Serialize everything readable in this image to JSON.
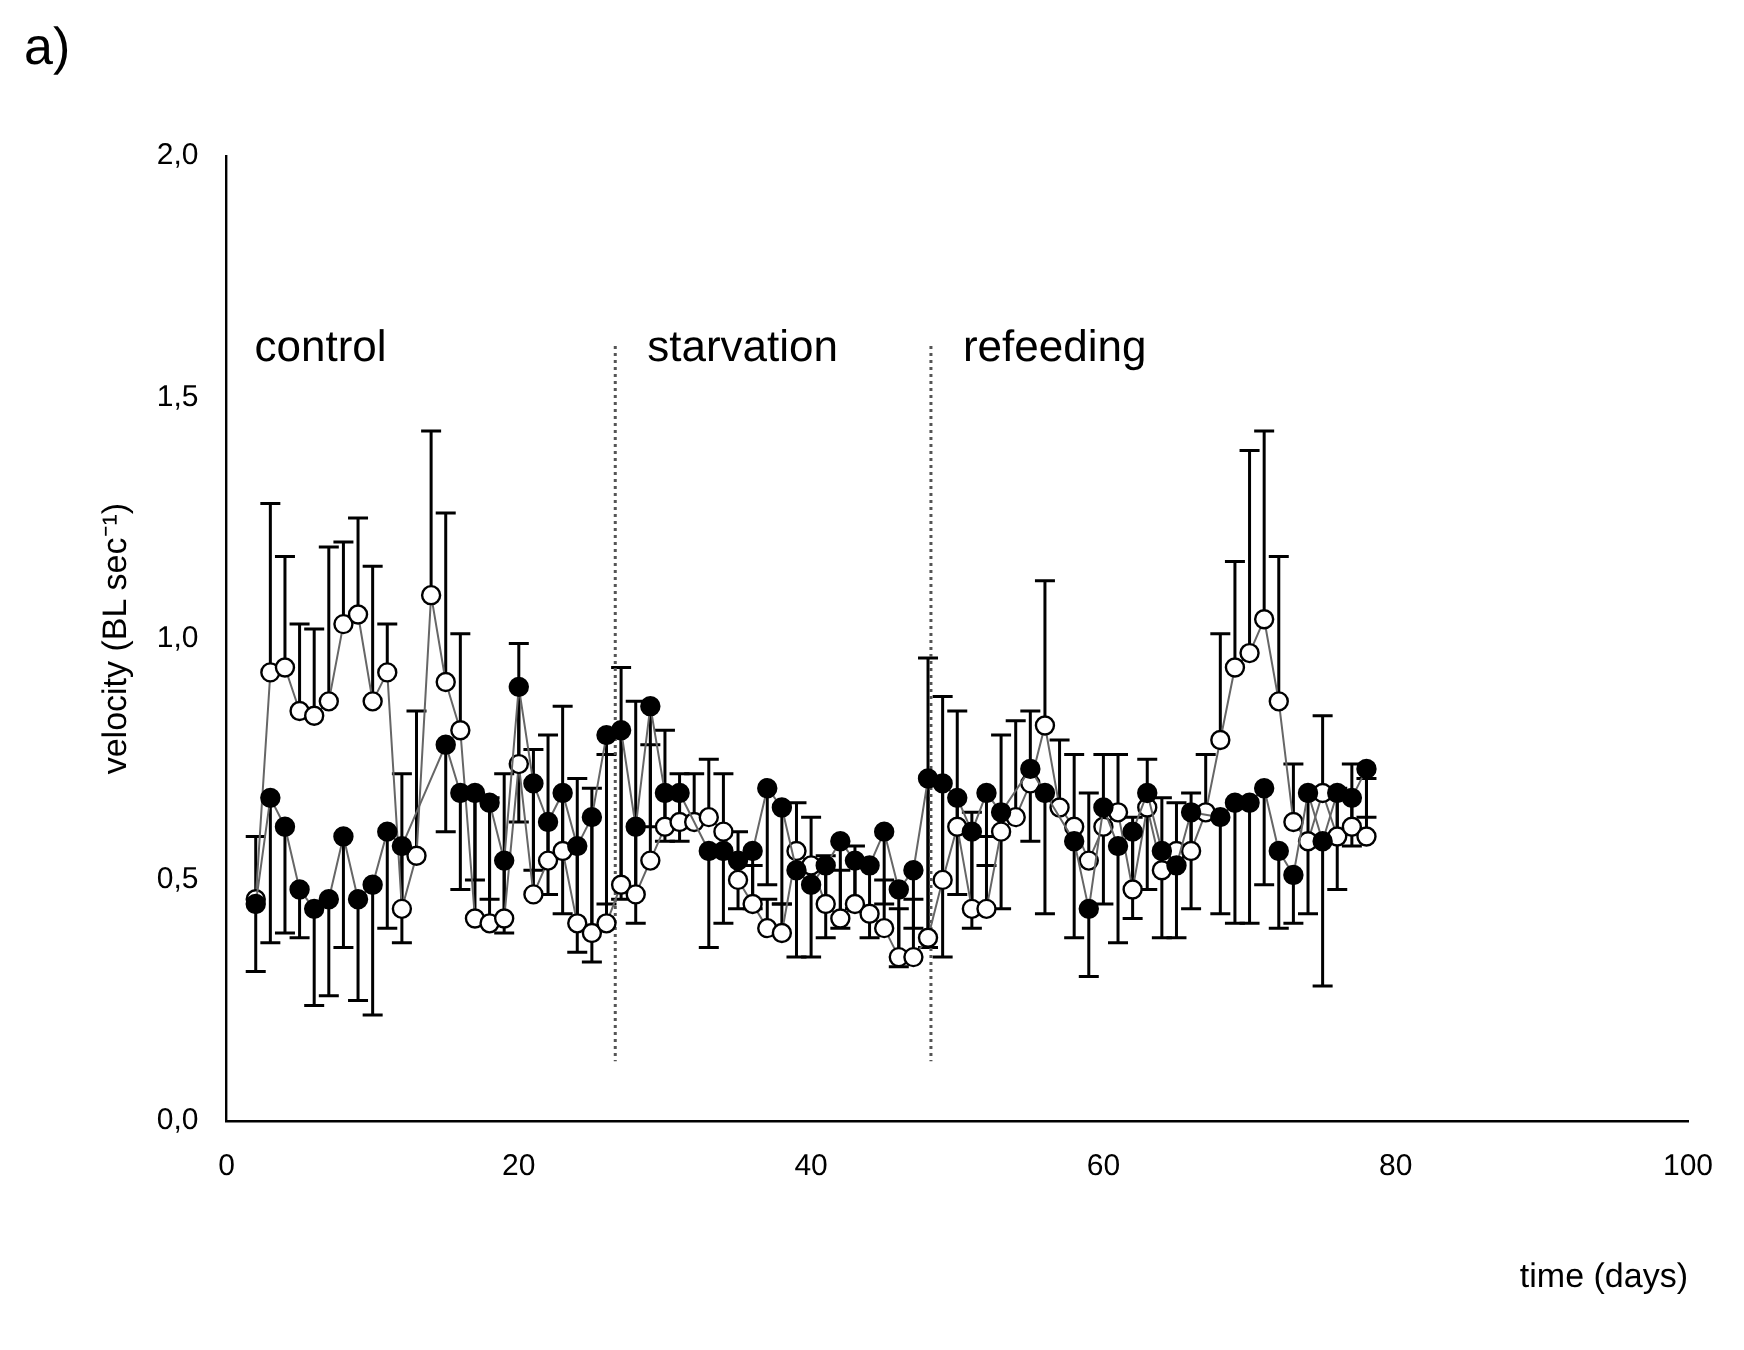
{
  "chart_data": {
    "type": "line",
    "title": "a)",
    "xlabel": "time (days)",
    "ylabel": "velocity (BL sec⁻¹)",
    "marker": "circle",
    "line_style": "solid",
    "grid": false,
    "xlim": [
      0,
      100
    ],
    "xticks": [
      0,
      20,
      40,
      60,
      80,
      100
    ],
    "ylim": [
      0,
      2
    ],
    "yticks": [
      {
        "value": 0,
        "label": "0,0"
      },
      {
        "value": 0.5,
        "label": "0,5"
      },
      {
        "value": 1,
        "label": "1,0"
      },
      {
        "value": 1.5,
        "label": "1,5"
      },
      {
        "value": 2,
        "label": "2,0"
      }
    ],
    "x": [
      2,
      3,
      4,
      5,
      6,
      7,
      8,
      9,
      10,
      11,
      12,
      13,
      14,
      15,
      16,
      17,
      18,
      19,
      20,
      21,
      22,
      23,
      24,
      25,
      26,
      27,
      28,
      29,
      30,
      31,
      32,
      33,
      34,
      35,
      36,
      37,
      38,
      39,
      40,
      41,
      42,
      43,
      44,
      45,
      46,
      47,
      48,
      49,
      50,
      51,
      52,
      53,
      54,
      55,
      56,
      57,
      58,
      59,
      60,
      61,
      62,
      63,
      64,
      65,
      66,
      67,
      68,
      69,
      70,
      71,
      72,
      73,
      74,
      75,
      76,
      77,
      78
    ],
    "series": [
      {
        "color": "#000000",
        "values": [
          0.45,
          0.67,
          0.61,
          0.48,
          0.44,
          0.46,
          0.59,
          0.46,
          0.49,
          0.6,
          0.57,
          null,
          null,
          0.78,
          0.68,
          0.68,
          0.66,
          0.54,
          0.9,
          0.7,
          0.62,
          0.68,
          0.57,
          0.63,
          0.8,
          0.81,
          0.61,
          0.86,
          0.68,
          0.68,
          null,
          0.56,
          0.56,
          0.54,
          0.56,
          0.69,
          0.65,
          0.52,
          0.49,
          0.53,
          0.58,
          0.54,
          0.53,
          0.6,
          0.48,
          0.52,
          0.71,
          0.7,
          0.67,
          0.6,
          0.68,
          0.64,
          null,
          0.73,
          0.68,
          null,
          0.58,
          0.44,
          0.65,
          0.57,
          0.6,
          0.68,
          0.56,
          0.53,
          0.64,
          null,
          0.63,
          0.66,
          0.66,
          0.69,
          0.56,
          0.51,
          0.68,
          0.58,
          0.68,
          0.67,
          0.73
        ],
        "errors": [
          [
            0.31,
            0.45
          ],
          [
            0.37,
            0.67
          ],
          [
            0.39,
            0.61
          ],
          [
            0.38,
            0.48
          ],
          [
            0.24,
            0.44
          ],
          [
            0.26,
            0.46
          ],
          [
            0.36,
            0.59
          ],
          [
            0.25,
            0.46
          ],
          [
            0.22,
            0.49
          ],
          [
            0.4,
            0.6
          ],
          [
            0.37,
            0.57
          ],
          null,
          null,
          [
            0.6,
            0.78
          ],
          [
            0.48,
            0.68
          ],
          [
            0.5,
            0.68
          ],
          [
            0.46,
            0.66
          ],
          [
            0.39,
            0.54
          ],
          [
            0.62,
            0.9
          ],
          [
            0.52,
            0.7
          ],
          [
            0.47,
            0.62
          ],
          [
            0.43,
            0.68
          ],
          [
            0.35,
            0.57
          ],
          [
            0.33,
            0.63
          ],
          [
            0.45,
            0.8
          ],
          [
            0.46,
            0.81
          ],
          [
            0.41,
            0.61
          ],
          [
            0.61,
            0.86
          ],
          [
            0.58,
            0.68
          ],
          [
            0.58,
            0.68
          ],
          null,
          [
            0.36,
            0.56
          ],
          [
            0.41,
            0.56
          ],
          [
            0.44,
            0.54
          ],
          [
            0.44,
            0.56
          ],
          [
            0.49,
            0.69
          ],
          [
            0.45,
            0.65
          ],
          [
            0.34,
            0.52
          ],
          [
            0.34,
            0.49
          ],
          [
            0.38,
            0.53
          ],
          [
            0.4,
            0.58
          ],
          [
            0.44,
            0.54
          ],
          [
            0.38,
            0.53
          ],
          [
            0.45,
            0.6
          ],
          [
            0.32,
            0.48
          ],
          [
            0.4,
            0.52
          ],
          [
            0.36,
            0.71
          ],
          [
            0.34,
            0.7
          ],
          [
            0.47,
            0.67
          ],
          [
            0.4,
            0.6
          ],
          [
            0.53,
            0.68
          ],
          [
            0.44,
            0.64
          ],
          null,
          [
            0.58,
            0.73
          ],
          [
            0.43,
            0.68
          ],
          null,
          [
            0.38,
            0.58
          ],
          [
            0.3,
            0.44
          ],
          [
            0.45,
            0.65
          ],
          [
            0.37,
            0.57
          ],
          [
            0.42,
            0.6
          ],
          [
            0.48,
            0.68
          ],
          [
            0.38,
            0.56
          ],
          [
            0.38,
            0.53
          ],
          [
            0.44,
            0.64
          ],
          null,
          [
            0.43,
            0.63
          ],
          [
            0.41,
            0.66
          ],
          [
            0.41,
            0.66
          ],
          [
            0.49,
            0.69
          ],
          [
            0.4,
            0.56
          ],
          [
            0.41,
            0.51
          ],
          [
            0.43,
            0.68
          ],
          [
            0.28,
            0.58
          ],
          [
            0.48,
            0.68
          ],
          [
            0.57,
            0.67
          ],
          [
            0.63,
            0.73
          ]
        ]
      },
      {
        "color": "#ffffff",
        "values": [
          0.46,
          0.93,
          0.94,
          0.85,
          0.84,
          0.87,
          1.03,
          1.05,
          0.87,
          0.93,
          0.44,
          0.55,
          1.09,
          0.91,
          0.81,
          0.42,
          0.41,
          0.42,
          0.74,
          0.47,
          0.54,
          0.56,
          0.41,
          0.39,
          0.41,
          0.49,
          0.47,
          0.54,
          0.61,
          0.62,
          0.62,
          0.63,
          0.6,
          0.5,
          0.45,
          0.4,
          0.39,
          0.56,
          0.53,
          0.45,
          0.42,
          0.45,
          0.43,
          0.4,
          0.34,
          0.34,
          0.38,
          0.5,
          0.61,
          0.44,
          0.44,
          0.6,
          0.63,
          0.7,
          0.82,
          0.65,
          0.61,
          0.54,
          0.61,
          0.64,
          0.48,
          0.65,
          0.52,
          0.56,
          0.56,
          0.64,
          0.79,
          0.94,
          0.97,
          1.04,
          0.87,
          0.62,
          0.58,
          0.68,
          0.59,
          0.61,
          0.59
        ],
        "errors": [
          [
            0.46,
            0.59
          ],
          [
            0.93,
            1.28
          ],
          [
            0.94,
            1.17
          ],
          [
            0.85,
            1.03
          ],
          [
            0.84,
            1.02
          ],
          [
            0.87,
            1.19
          ],
          [
            1.03,
            1.2
          ],
          [
            1.05,
            1.25
          ],
          [
            0.87,
            1.15
          ],
          [
            0.93,
            1.03
          ],
          [
            0.44,
            0.72
          ],
          [
            0.55,
            0.85
          ],
          [
            1.09,
            1.43
          ],
          [
            0.91,
            1.26
          ],
          [
            0.81,
            1.01
          ],
          [
            0.42,
            0.67
          ],
          [
            0.41,
            0.67
          ],
          [
            0.42,
            0.72
          ],
          [
            0.74,
            0.99
          ],
          [
            0.47,
            0.77
          ],
          [
            0.54,
            0.8
          ],
          [
            0.56,
            0.86
          ],
          [
            0.41,
            0.71
          ],
          [
            0.39,
            0.69
          ],
          [
            0.41,
            0.76
          ],
          [
            0.49,
            0.94
          ],
          [
            0.47,
            0.87
          ],
          [
            0.54,
            0.78
          ],
          [
            0.61,
            0.81
          ],
          [
            0.62,
            0.72
          ],
          [
            0.62,
            0.72
          ],
          [
            0.63,
            0.75
          ],
          [
            0.6,
            0.72
          ],
          [
            0.5,
            0.6
          ],
          [
            0.45,
            0.53
          ],
          [
            0.4,
            0.46
          ],
          [
            0.39,
            0.45
          ],
          [
            0.56,
            0.66
          ],
          [
            0.53,
            0.63
          ],
          [
            0.45,
            0.55
          ],
          [
            0.42,
            0.52
          ],
          [
            0.45,
            0.57
          ],
          null,
          [
            0.4,
            0.5
          ],
          [
            0.34,
            0.44
          ],
          [
            0.34,
            0.46
          ],
          [
            0.38,
            0.96
          ],
          [
            0.5,
            0.88
          ],
          [
            0.61,
            0.85
          ],
          [
            0.44,
            0.64
          ],
          [
            0.44,
            0.59
          ],
          [
            0.6,
            0.8
          ],
          [
            0.63,
            0.83
          ],
          [
            0.7,
            0.85
          ],
          [
            0.82,
            1.12
          ],
          [
            0.65,
            0.79
          ],
          [
            0.61,
            0.76
          ],
          [
            0.54,
            0.68
          ],
          [
            0.61,
            0.76
          ],
          [
            0.64,
            0.76
          ],
          [
            0.48,
            0.63
          ],
          [
            0.65,
            0.75
          ],
          [
            0.52,
            0.67
          ],
          [
            0.56,
            0.66
          ],
          [
            0.56,
            0.68
          ],
          [
            0.64,
            0.76
          ],
          [
            0.79,
            1.01
          ],
          [
            0.94,
            1.16
          ],
          [
            0.97,
            1.39
          ],
          [
            1.04,
            1.43
          ],
          [
            0.87,
            1.17
          ],
          [
            0.62,
            0.74
          ],
          null,
          [
            0.68,
            0.84
          ],
          [
            0.59,
            0.69
          ],
          [
            0.61,
            0.74
          ],
          [
            0.59,
            0.71
          ]
        ]
      }
    ],
    "ref_lines": [
      {
        "axis": "x",
        "value": 26.6,
        "line_style": "dotted",
        "color": "#555555"
      },
      {
        "axis": "x",
        "value": 48.2,
        "line_style": "dotted",
        "color": "#555555"
      }
    ],
    "annotations": [
      "control",
      "starvation",
      "refeeding"
    ]
  }
}
